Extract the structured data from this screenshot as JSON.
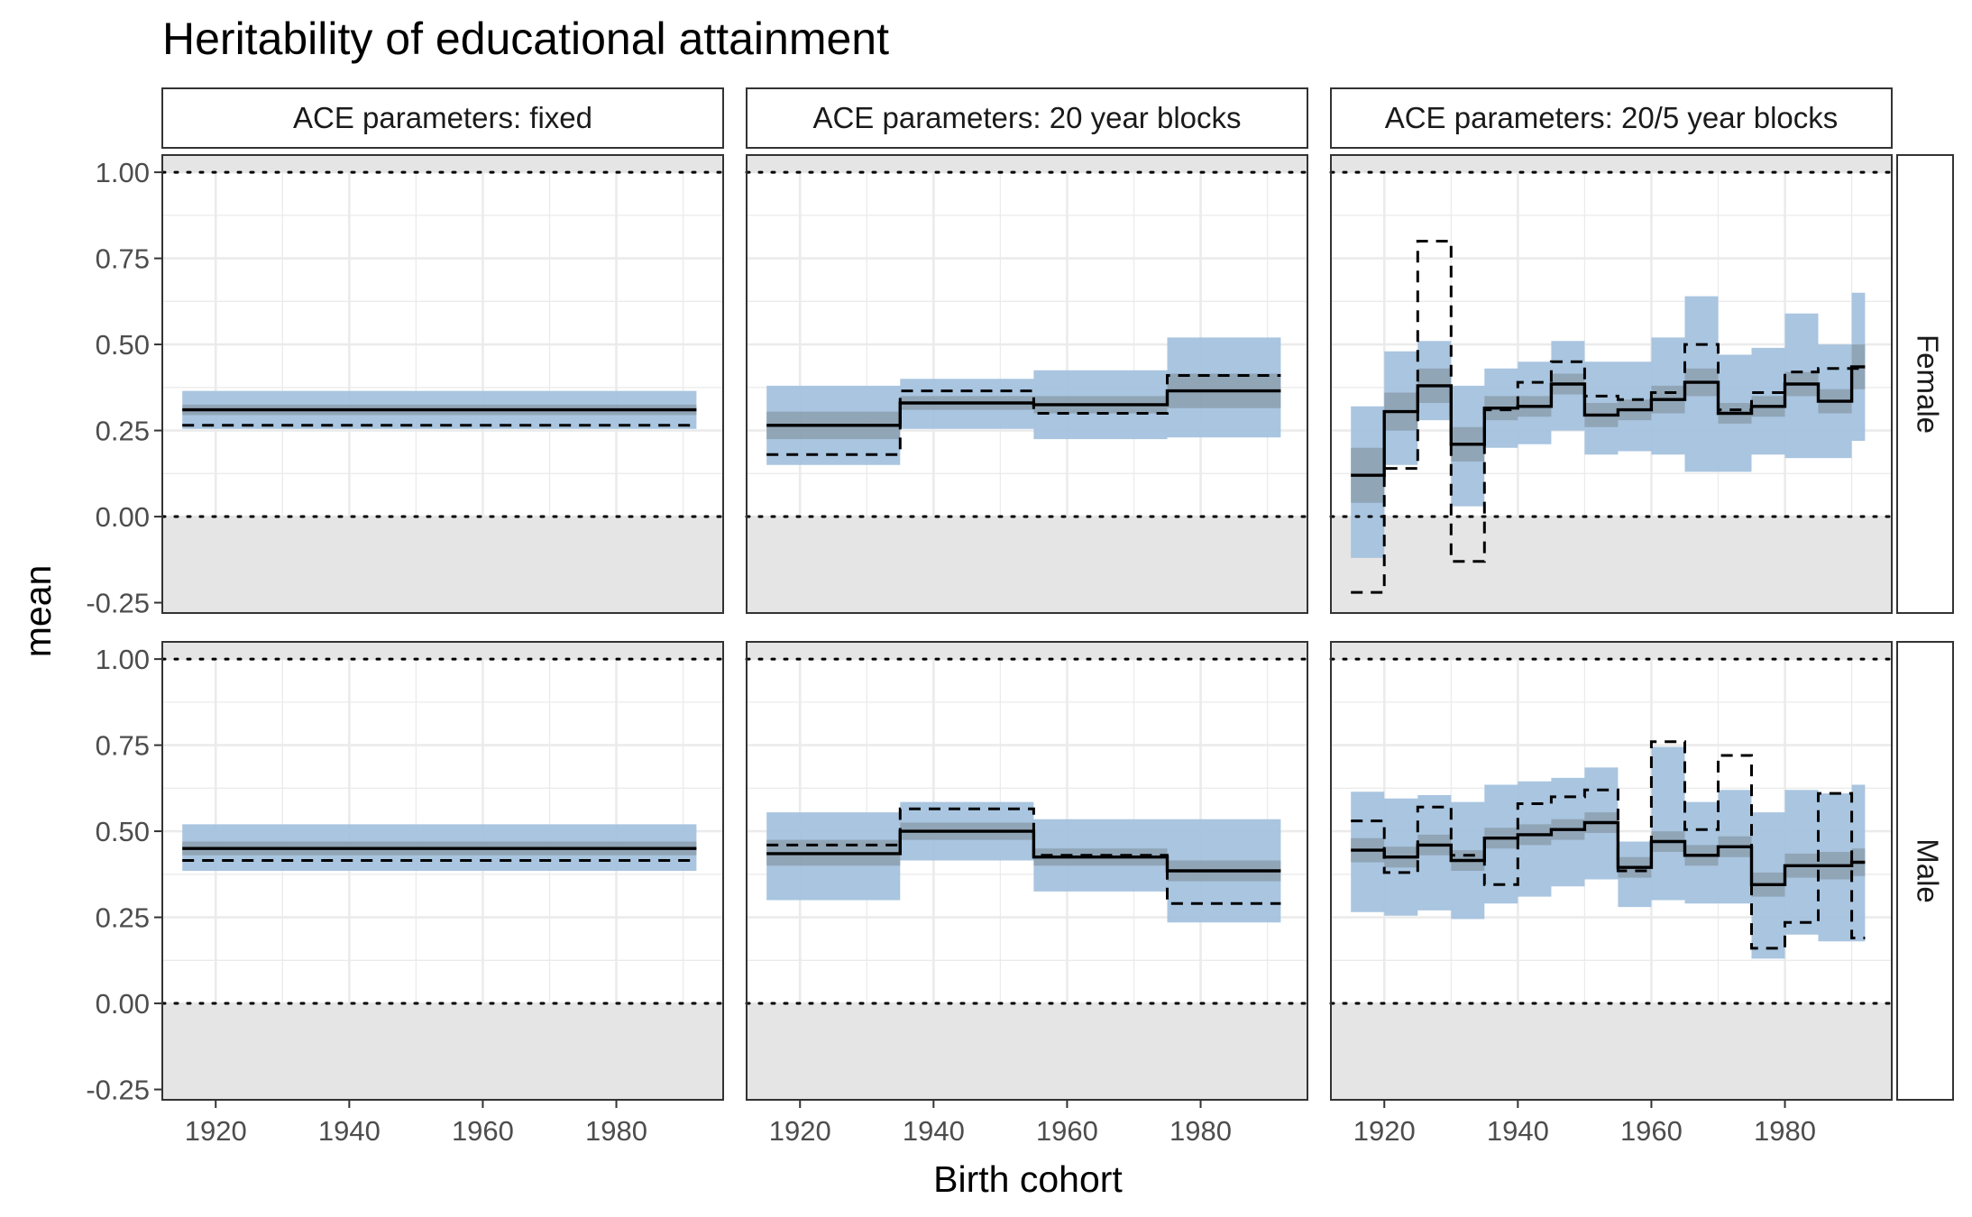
{
  "chart_data": {
    "type": "line",
    "title": "Heritability of educational attainment",
    "xlabel": "Birth cohort",
    "ylabel": "mean",
    "xlim": [
      1912,
      1996
    ],
    "ylim": [
      -0.28,
      1.05
    ],
    "x_ticks": [
      1920,
      1940,
      1960,
      1980
    ],
    "x_tick_labels": [
      "1920",
      "1940",
      "1960",
      "1980"
    ],
    "y_ticks": [
      -0.25,
      0,
      0.25,
      0.5,
      0.75,
      1
    ],
    "y_tick_labels": [
      "-0.25",
      "0.00",
      "0.25",
      "0.50",
      "0.75",
      "1.00"
    ],
    "reference_lines": [
      0,
      1
    ],
    "shaded_outside_range": [
      0,
      1
    ],
    "colors": {
      "outer_band": "#a4c2de",
      "inner_band": "#8899a8",
      "line": "#000000",
      "outside_shade": "#e5e5e5",
      "grid": "#ebebeb",
      "strip_fill": "#ffffff"
    },
    "columns": [
      "ACE parameters: fixed",
      "ACE parameters: 20 year blocks",
      "ACE parameters: 20/5 year blocks"
    ],
    "rows": [
      "Female",
      "Male"
    ],
    "panels": [
      {
        "column": "ACE parameters: fixed",
        "row": "Female",
        "step_starts": [
          1915
        ],
        "end": 1992,
        "mean": [
          0.31
        ],
        "inner_low": [
          0.295
        ],
        "inner_high": [
          0.325
        ],
        "outer_low": [
          0.255
        ],
        "outer_high": [
          0.365
        ],
        "dashed": [
          0.265
        ]
      },
      {
        "column": "ACE parameters: 20 year blocks",
        "row": "Female",
        "step_starts": [
          1915,
          1935,
          1955,
          1975
        ],
        "end": 1992,
        "mean": [
          0.265,
          0.33,
          0.325,
          0.365
        ],
        "inner_low": [
          0.225,
          0.31,
          0.3,
          0.315
        ],
        "inner_high": [
          0.305,
          0.35,
          0.35,
          0.415
        ],
        "outer_low": [
          0.15,
          0.255,
          0.225,
          0.23
        ],
        "outer_high": [
          0.38,
          0.4,
          0.425,
          0.52
        ],
        "dashed": [
          0.18,
          0.365,
          0.3,
          0.41
        ]
      },
      {
        "column": "ACE parameters: 20/5 year blocks",
        "row": "Female",
        "step_starts": [
          1915,
          1920,
          1925,
          1930,
          1935,
          1940,
          1945,
          1950,
          1955,
          1960,
          1965,
          1970,
          1975,
          1980,
          1985,
          1990
        ],
        "end": 1992,
        "mean": [
          0.12,
          0.305,
          0.38,
          0.21,
          0.315,
          0.32,
          0.385,
          0.295,
          0.31,
          0.34,
          0.39,
          0.3,
          0.32,
          0.385,
          0.335,
          0.435
        ],
        "inner_low": [
          0.04,
          0.25,
          0.33,
          0.16,
          0.28,
          0.29,
          0.355,
          0.26,
          0.28,
          0.3,
          0.35,
          0.27,
          0.29,
          0.35,
          0.3,
          0.37
        ],
        "inner_high": [
          0.2,
          0.36,
          0.43,
          0.26,
          0.35,
          0.35,
          0.415,
          0.33,
          0.34,
          0.38,
          0.43,
          0.33,
          0.35,
          0.42,
          0.37,
          0.5
        ],
        "outer_low": [
          -0.12,
          0.15,
          0.28,
          0.03,
          0.2,
          0.21,
          0.25,
          0.18,
          0.19,
          0.18,
          0.13,
          0.13,
          0.18,
          0.17,
          0.17,
          0.22
        ],
        "outer_high": [
          0.32,
          0.48,
          0.51,
          0.38,
          0.43,
          0.45,
          0.51,
          0.45,
          0.45,
          0.52,
          0.64,
          0.47,
          0.49,
          0.59,
          0.5,
          0.65
        ],
        "dashed": [
          -0.22,
          0.14,
          0.8,
          -0.13,
          0.31,
          0.39,
          0.45,
          0.35,
          0.34,
          0.36,
          0.5,
          0.31,
          0.36,
          0.42,
          0.43,
          0.43
        ]
      },
      {
        "column": "ACE parameters: fixed",
        "row": "Male",
        "step_starts": [
          1915
        ],
        "end": 1992,
        "mean": [
          0.45
        ],
        "inner_low": [
          0.43
        ],
        "inner_high": [
          0.47
        ],
        "outer_low": [
          0.385
        ],
        "outer_high": [
          0.52
        ],
        "dashed": [
          0.415
        ]
      },
      {
        "column": "ACE parameters: 20 year blocks",
        "row": "Male",
        "step_starts": [
          1915,
          1935,
          1955,
          1975
        ],
        "end": 1992,
        "mean": [
          0.435,
          0.5,
          0.425,
          0.385
        ],
        "inner_low": [
          0.4,
          0.475,
          0.4,
          0.355
        ],
        "inner_high": [
          0.475,
          0.525,
          0.45,
          0.415
        ],
        "outer_low": [
          0.3,
          0.415,
          0.325,
          0.235
        ],
        "outer_high": [
          0.555,
          0.585,
          0.535,
          0.535
        ],
        "dashed": [
          0.46,
          0.565,
          0.43,
          0.29
        ]
      },
      {
        "column": "ACE parameters: 20/5 year blocks",
        "row": "Male",
        "step_starts": [
          1915,
          1920,
          1925,
          1930,
          1935,
          1940,
          1945,
          1950,
          1955,
          1960,
          1965,
          1970,
          1975,
          1980,
          1985,
          1990
        ],
        "end": 1992,
        "mean": [
          0.445,
          0.425,
          0.46,
          0.415,
          0.48,
          0.49,
          0.505,
          0.525,
          0.395,
          0.47,
          0.43,
          0.455,
          0.345,
          0.4,
          0.4,
          0.41
        ],
        "inner_low": [
          0.41,
          0.395,
          0.43,
          0.385,
          0.45,
          0.46,
          0.475,
          0.495,
          0.365,
          0.44,
          0.4,
          0.425,
          0.31,
          0.365,
          0.36,
          0.37
        ],
        "inner_high": [
          0.48,
          0.455,
          0.49,
          0.445,
          0.51,
          0.52,
          0.535,
          0.555,
          0.425,
          0.5,
          0.46,
          0.485,
          0.38,
          0.435,
          0.44,
          0.45
        ],
        "outer_low": [
          0.265,
          0.255,
          0.27,
          0.245,
          0.29,
          0.31,
          0.34,
          0.36,
          0.28,
          0.3,
          0.29,
          0.29,
          0.13,
          0.2,
          0.18,
          0.18
        ],
        "outer_high": [
          0.615,
          0.595,
          0.605,
          0.585,
          0.635,
          0.645,
          0.655,
          0.685,
          0.47,
          0.745,
          0.585,
          0.62,
          0.555,
          0.62,
          0.61,
          0.635
        ],
        "dashed": [
          0.53,
          0.38,
          0.57,
          0.43,
          0.345,
          0.58,
          0.6,
          0.62,
          0.385,
          0.76,
          0.505,
          0.72,
          0.16,
          0.235,
          0.61,
          0.19
        ]
      }
    ]
  }
}
